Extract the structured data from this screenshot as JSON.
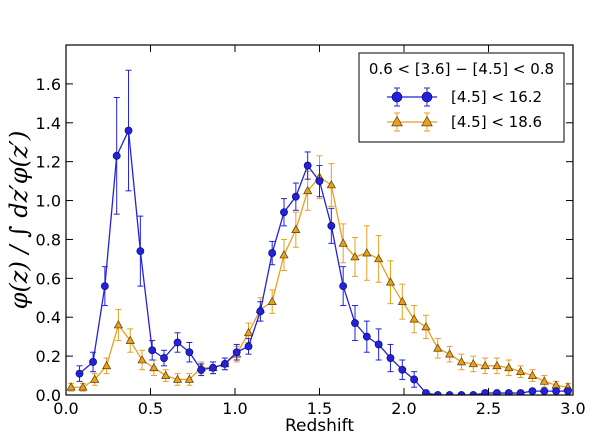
{
  "chart_data": {
    "type": "line",
    "xlabel": "Redshift",
    "ylabel": "φ(z) / ∫ dz′φ(z′)",
    "xlim": [
      0.0,
      3.0
    ],
    "ylim": [
      0.0,
      1.8
    ],
    "xticks": [
      0.0,
      0.5,
      1.0,
      1.5,
      2.0,
      2.5,
      3.0
    ],
    "xtick_labels": [
      "0.0",
      "0.5",
      "1.0",
      "1.5",
      "2.0",
      "2.5",
      "3.0"
    ],
    "yticks": [
      0.0,
      0.2,
      0.4,
      0.6,
      0.8,
      1.0,
      1.2,
      1.4,
      1.6
    ],
    "ytick_labels": [
      "0.0",
      "0.2",
      "0.4",
      "0.6",
      "0.8",
      "1.0",
      "1.2",
      "1.4",
      "1.6"
    ],
    "legend": {
      "title": "0.6 < [3.6] − [4.5] < 0.8",
      "placement": "top-right"
    },
    "series": [
      {
        "name": "[4.5] < 16.2",
        "color": "#2222dd",
        "marker": "circle",
        "x": [
          0.08,
          0.16,
          0.23,
          0.3,
          0.37,
          0.44,
          0.51,
          0.58,
          0.66,
          0.73,
          0.8,
          0.87,
          0.94,
          1.01,
          1.08,
          1.15,
          1.22,
          1.29,
          1.36,
          1.43,
          1.5,
          1.57,
          1.64,
          1.71,
          1.78,
          1.85,
          1.92,
          1.99,
          2.06,
          2.13,
          2.2,
          2.27,
          2.34,
          2.41,
          2.48,
          2.55,
          2.62,
          2.69,
          2.76,
          2.83,
          2.9,
          2.97
        ],
        "y": [
          0.11,
          0.17,
          0.56,
          1.23,
          1.36,
          0.74,
          0.23,
          0.19,
          0.27,
          0.22,
          0.13,
          0.14,
          0.16,
          0.22,
          0.25,
          0.43,
          0.73,
          0.94,
          1.02,
          1.18,
          1.1,
          0.87,
          0.56,
          0.37,
          0.3,
          0.26,
          0.19,
          0.13,
          0.08,
          0.01,
          0.0,
          0.0,
          0.0,
          0.0,
          0.01,
          0.01,
          0.01,
          0.01,
          0.02,
          0.02,
          0.02,
          0.02
        ],
        "err": [
          0.04,
          0.05,
          0.1,
          0.3,
          0.31,
          0.18,
          0.05,
          0.04,
          0.05,
          0.05,
          0.03,
          0.03,
          0.03,
          0.04,
          0.04,
          0.05,
          0.06,
          0.07,
          0.07,
          0.07,
          0.08,
          0.09,
          0.1,
          0.09,
          0.08,
          0.08,
          0.07,
          0.05,
          0.04,
          0.01,
          0.005,
          0.005,
          0.005,
          0.005,
          0.005,
          0.005,
          0.005,
          0.005,
          0.005,
          0.005,
          0.005,
          0.005
        ]
      },
      {
        "name": "[4.5] < 18.6",
        "color": "#e8a020",
        "edge": "#5a3a00",
        "marker": "triangle",
        "x": [
          0.03,
          0.1,
          0.17,
          0.24,
          0.31,
          0.38,
          0.45,
          0.52,
          0.59,
          0.66,
          0.73,
          0.8,
          0.87,
          0.94,
          1.01,
          1.08,
          1.15,
          1.22,
          1.29,
          1.36,
          1.43,
          1.5,
          1.57,
          1.64,
          1.71,
          1.78,
          1.85,
          1.92,
          1.99,
          2.06,
          2.13,
          2.2,
          2.27,
          2.34,
          2.41,
          2.48,
          2.55,
          2.62,
          2.69,
          2.76,
          2.83,
          2.9,
          2.97
        ],
        "y": [
          0.04,
          0.04,
          0.08,
          0.15,
          0.36,
          0.28,
          0.18,
          0.14,
          0.1,
          0.08,
          0.08,
          0.14,
          0.14,
          0.16,
          0.21,
          0.32,
          0.44,
          0.48,
          0.72,
          0.85,
          1.05,
          1.12,
          1.08,
          0.78,
          0.71,
          0.73,
          0.7,
          0.58,
          0.48,
          0.39,
          0.35,
          0.24,
          0.21,
          0.17,
          0.16,
          0.15,
          0.15,
          0.14,
          0.12,
          0.1,
          0.07,
          0.05,
          0.04
        ],
        "err": [
          0.02,
          0.02,
          0.03,
          0.04,
          0.08,
          0.06,
          0.05,
          0.04,
          0.03,
          0.03,
          0.03,
          0.03,
          0.03,
          0.03,
          0.04,
          0.05,
          0.06,
          0.06,
          0.08,
          0.09,
          0.1,
          0.11,
          0.11,
          0.1,
          0.1,
          0.14,
          0.12,
          0.11,
          0.09,
          0.07,
          0.06,
          0.05,
          0.04,
          0.04,
          0.04,
          0.04,
          0.04,
          0.04,
          0.03,
          0.03,
          0.03,
          0.02,
          0.02
        ]
      }
    ]
  }
}
